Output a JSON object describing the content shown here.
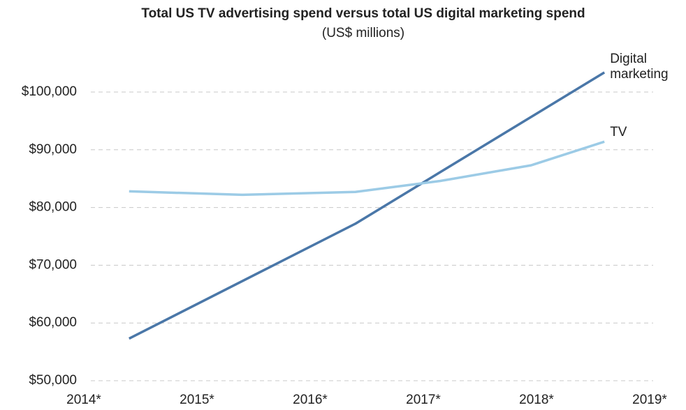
{
  "chart_data": {
    "type": "line",
    "title": "Total US TV advertising spend versus total US digital marketing spend",
    "subtitle": "(US$ millions)",
    "xlim": [
      2014,
      2019
    ],
    "xticks": [
      {
        "value": 2014,
        "label": "2014*"
      },
      {
        "value": 2015,
        "label": "2015*"
      },
      {
        "value": 2016,
        "label": "2016*"
      },
      {
        "value": 2017,
        "label": "2017*"
      },
      {
        "value": 2018,
        "label": "2018*"
      },
      {
        "value": 2019,
        "label": "2019*"
      }
    ],
    "ylim": [
      50000,
      100000
    ],
    "yticks": [
      {
        "value": 50000,
        "label": "$50,000"
      },
      {
        "value": 60000,
        "label": "$60,000"
      },
      {
        "value": 70000,
        "label": "$70,000"
      },
      {
        "value": 80000,
        "label": "$80,000"
      },
      {
        "value": 90000,
        "label": "$90,000"
      },
      {
        "value": 100000,
        "label": "$100,000"
      }
    ],
    "grid": true,
    "series": [
      {
        "name": "Digital marketing",
        "color": "#4a77a8",
        "x": [
          2014.4,
          2016.4,
          2018.6
        ],
        "values": [
          57300,
          77200,
          103400
        ]
      },
      {
        "name": "TV",
        "color": "#9ccbe6",
        "x": [
          2014.4,
          2015.4,
          2016.4,
          2017.15,
          2017.95,
          2018.6
        ],
        "values": [
          82800,
          82200,
          82700,
          84600,
          87300,
          91400
        ]
      }
    ]
  }
}
